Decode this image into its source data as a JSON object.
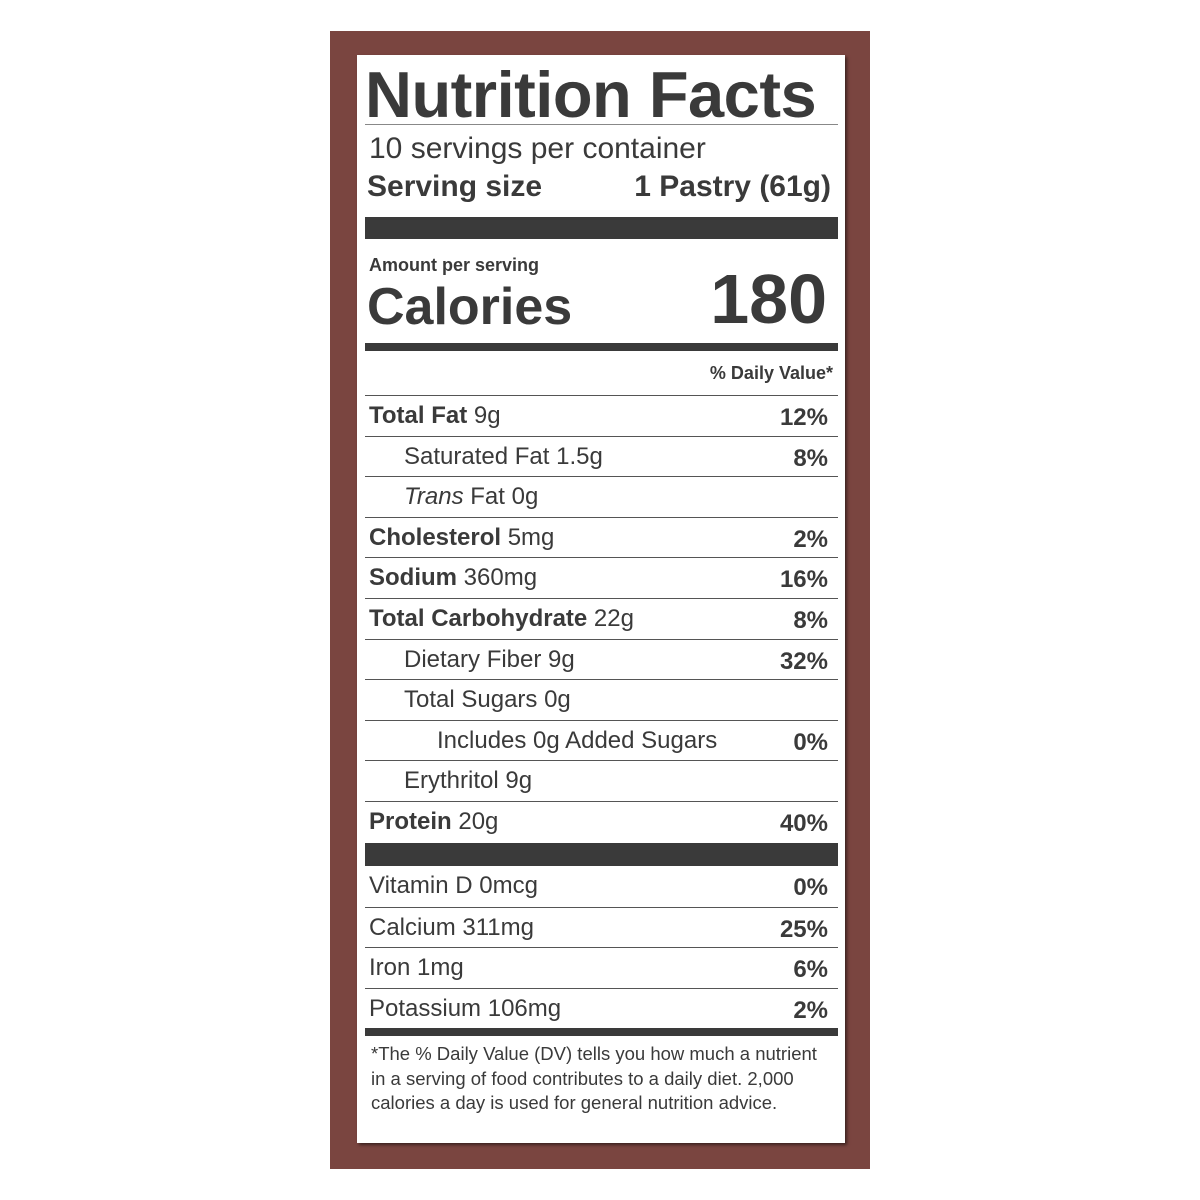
{
  "title": "Nutrition Facts",
  "servings_per_container": "10 servings per container",
  "serving_size_label": "Serving size",
  "serving_size_value": "1 Pastry (61g)",
  "amount_per_serving": "Amount per serving",
  "calories_label": "Calories",
  "calories_value": "180",
  "daily_value_header": "% Daily Value*",
  "colors": {
    "border": "#7a4540",
    "text": "#3a3a3a",
    "background": "#ffffff"
  },
  "nutrients": [
    {
      "name": "Total Fat",
      "amount": "9g",
      "dv": "12%",
      "bold": true,
      "indent": 0
    },
    {
      "name": "Saturated Fat",
      "amount": "1.5g",
      "dv": "8%",
      "bold": false,
      "indent": 1
    },
    {
      "italic_prefix": "Trans",
      "name": "Fat",
      "amount": "0g",
      "dv": "",
      "bold": false,
      "indent": 1
    },
    {
      "name": "Cholesterol",
      "amount": "5mg",
      "dv": "2%",
      "bold": true,
      "indent": 0
    },
    {
      "name": "Sodium",
      "amount": "360mg",
      "dv": "16%",
      "bold": true,
      "indent": 0
    },
    {
      "name": "Total Carbohydrate",
      "amount": "22g",
      "dv": "8%",
      "bold": true,
      "indent": 0
    },
    {
      "name": "Dietary Fiber",
      "amount": "9g",
      "dv": "32%",
      "bold": false,
      "indent": 1
    },
    {
      "name": "Total Sugars",
      "amount": "0g",
      "dv": "",
      "bold": false,
      "indent": 1
    },
    {
      "name": "Includes 0g Added Sugars",
      "amount": "",
      "dv": "0%",
      "bold": false,
      "indent": 2
    },
    {
      "name": "Erythritol",
      "amount": "9g",
      "dv": "",
      "bold": false,
      "indent": 1
    },
    {
      "name": "Protein",
      "amount": "20g",
      "dv": "40%",
      "bold": true,
      "indent": 0
    }
  ],
  "vitamins": [
    {
      "name": "Vitamin D",
      "amount": "0mcg",
      "dv": "0%"
    },
    {
      "name": "Calcium",
      "amount": "311mg",
      "dv": "25%"
    },
    {
      "name": "Iron",
      "amount": "1mg",
      "dv": "6%"
    },
    {
      "name": "Potassium",
      "amount": "106mg",
      "dv": "2%"
    }
  ],
  "footnote": "*The % Daily Value (DV) tells you how much a nutrient in a serving of food contributes to a daily diet. 2,000 calories a day is used for general nutrition advice."
}
